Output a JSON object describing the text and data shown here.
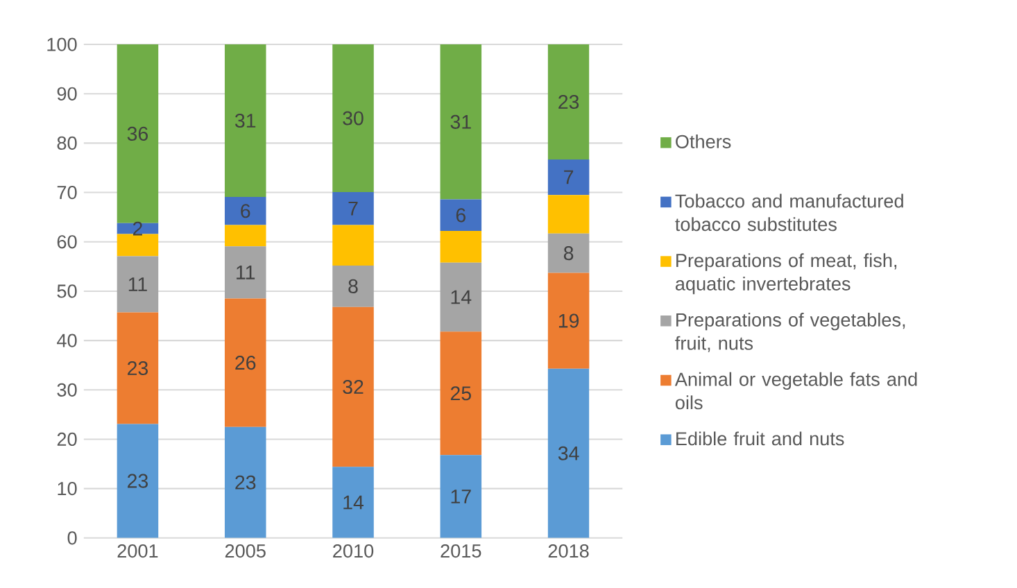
{
  "chart_data": {
    "type": "bar",
    "stacked": true,
    "grid": "y",
    "legend": "right",
    "categories": [
      "2001",
      "2005",
      "2010",
      "2015",
      "2018"
    ],
    "ylim": [
      0,
      100
    ],
    "yticks": [
      0,
      10,
      20,
      30,
      40,
      50,
      60,
      70,
      80,
      90,
      100
    ],
    "series": [
      {
        "name": "Edible fruit and nuts",
        "color": "#5b9bd5",
        "values": [
          23.1,
          22.5,
          14.4,
          16.8,
          34.3
        ],
        "value_labels": [
          "23",
          "23",
          "14",
          "17",
          "34"
        ]
      },
      {
        "name": "Animal or vegetable fats and oils",
        "color": "#ed7d31",
        "values": [
          22.6,
          26.0,
          32.4,
          25.0,
          19.4
        ],
        "value_labels": [
          "23",
          "26",
          "32",
          "25",
          "19"
        ]
      },
      {
        "name": "Preparations of vegetables, fruit, nuts",
        "color": "#a5a5a5",
        "values": [
          11.4,
          10.6,
          8.4,
          14.0,
          8.0
        ],
        "value_labels": [
          "11",
          "11",
          "8",
          "14",
          "8"
        ]
      },
      {
        "name": "Preparations of meat, fish, aquatic invertebrates",
        "color": "#ffc000",
        "values": [
          4.5,
          4.3,
          8.2,
          6.4,
          7.8
        ],
        "value_labels": [
          null,
          null,
          null,
          null,
          null
        ]
      },
      {
        "name": "Tobacco and manufactured tobacco substitutes",
        "color": "#4472c4",
        "values": [
          2.2,
          5.7,
          6.7,
          6.4,
          7.2
        ],
        "value_labels": [
          "2",
          "6",
          "7",
          "6",
          "7"
        ]
      },
      {
        "name": "Others",
        "color": "#70ad47",
        "values": [
          36.2,
          30.9,
          29.9,
          31.4,
          23.3
        ],
        "value_labels": [
          "36",
          "31",
          "30",
          "31",
          "23"
        ]
      }
    ]
  }
}
